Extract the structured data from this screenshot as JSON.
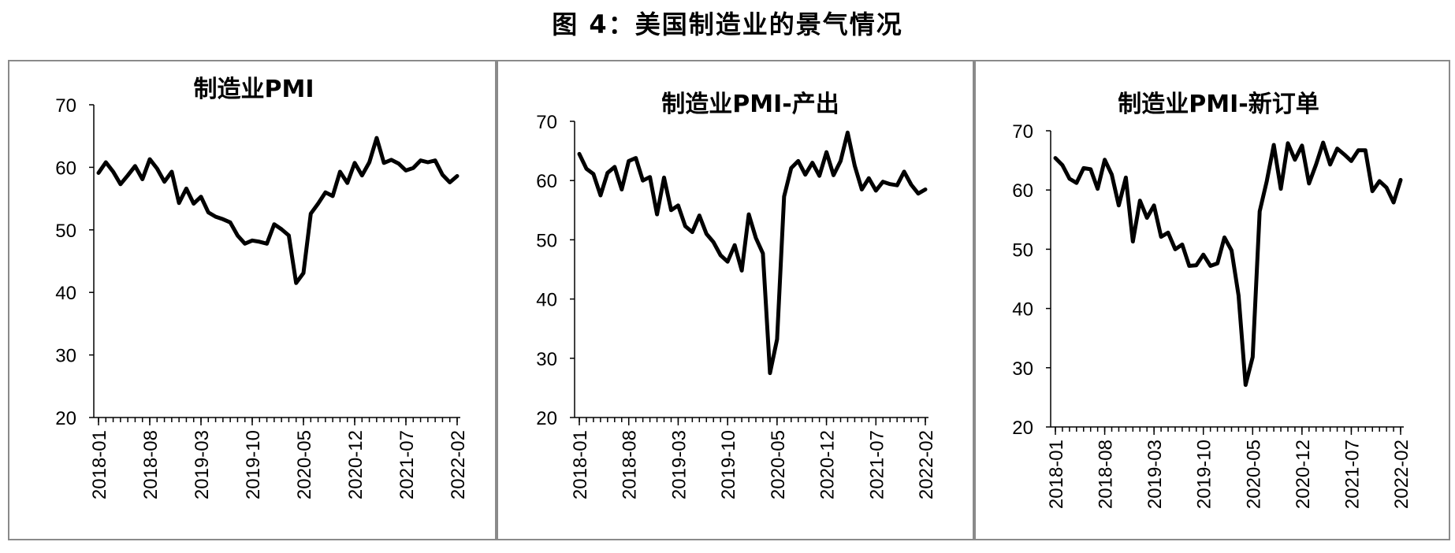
{
  "figure": {
    "title": "图 4：美国制造业的景气情况"
  },
  "chart_data": [
    {
      "type": "line",
      "title": "制造业PMI",
      "ylim": [
        20,
        70
      ],
      "yticks": [
        20,
        30,
        40,
        50,
        60,
        70
      ],
      "xticks": [
        "2018-01",
        "2018-08",
        "2019-03",
        "2019-10",
        "2020-05",
        "2020-12",
        "2021-07",
        "2022-02"
      ],
      "grid": false,
      "x_start": "2018-01",
      "x_end": "2022-02",
      "series": [
        {
          "values": [
            59.1,
            60.8,
            59.3,
            57.3,
            58.7,
            60.2,
            58.1,
            61.3,
            59.8,
            57.7,
            59.3,
            54.3,
            56.6,
            54.2,
            55.3,
            52.8,
            52.1,
            51.7,
            51.2,
            49.1,
            47.8,
            48.3,
            48.1,
            47.8,
            50.9,
            50.1,
            49.1,
            41.5,
            43.1,
            52.6,
            54.2,
            56.0,
            55.4,
            59.3,
            57.5,
            60.7,
            58.7,
            60.8,
            64.7,
            60.7,
            61.2,
            60.6,
            59.5,
            59.9,
            61.1,
            60.8,
            61.1,
            58.8,
            57.6,
            58.6
          ]
        }
      ]
    },
    {
      "type": "line",
      "title": "制造业PMI-产出",
      "ylim": [
        20,
        70
      ],
      "yticks": [
        20,
        30,
        40,
        50,
        60,
        70
      ],
      "xticks": [
        "2018-01",
        "2018-08",
        "2019-03",
        "2019-10",
        "2020-05",
        "2020-12",
        "2021-07",
        "2022-02"
      ],
      "grid": false,
      "x_start": "2018-01",
      "x_end": "2022-02",
      "series": [
        {
          "values": [
            64.5,
            62.0,
            61.1,
            57.5,
            61.3,
            62.3,
            58.5,
            63.3,
            63.8,
            60.0,
            60.6,
            54.3,
            60.5,
            55.0,
            55.8,
            52.3,
            51.3,
            54.1,
            51.0,
            49.6,
            47.4,
            46.3,
            49.1,
            44.8,
            54.3,
            50.3,
            47.7,
            27.5,
            33.2,
            57.3,
            62.1,
            63.3,
            61.0,
            63.0,
            60.8,
            64.8,
            60.9,
            63.3,
            68.1,
            62.5,
            58.5,
            60.4,
            58.3,
            59.8,
            59.4,
            59.2,
            61.5,
            59.3,
            57.8,
            58.5
          ]
        }
      ]
    },
    {
      "type": "line",
      "title": "制造业PMI-新订单",
      "ylim": [
        20,
        70
      ],
      "yticks": [
        20,
        30,
        40,
        50,
        60,
        70
      ],
      "xticks": [
        "2018-01",
        "2018-08",
        "2019-03",
        "2019-10",
        "2020-05",
        "2020-12",
        "2021-07",
        "2022-02"
      ],
      "grid": false,
      "x_start": "2018-01",
      "x_end": "2022-02",
      "series": [
        {
          "values": [
            65.4,
            64.2,
            61.9,
            61.2,
            63.7,
            63.5,
            60.2,
            65.1,
            62.6,
            57.4,
            62.1,
            51.3,
            58.2,
            55.3,
            57.4,
            52.1,
            52.8,
            50.0,
            50.8,
            47.2,
            47.3,
            49.1,
            47.2,
            47.6,
            52.0,
            49.8,
            42.2,
            27.1,
            31.8,
            56.4,
            61.5,
            67.6,
            60.2,
            67.9,
            65.1,
            67.5,
            61.1,
            64.3,
            68.0,
            64.3,
            67.0,
            66.0,
            64.9,
            66.7,
            66.7,
            59.8,
            61.5,
            60.4,
            57.9,
            61.7
          ]
        }
      ]
    }
  ]
}
